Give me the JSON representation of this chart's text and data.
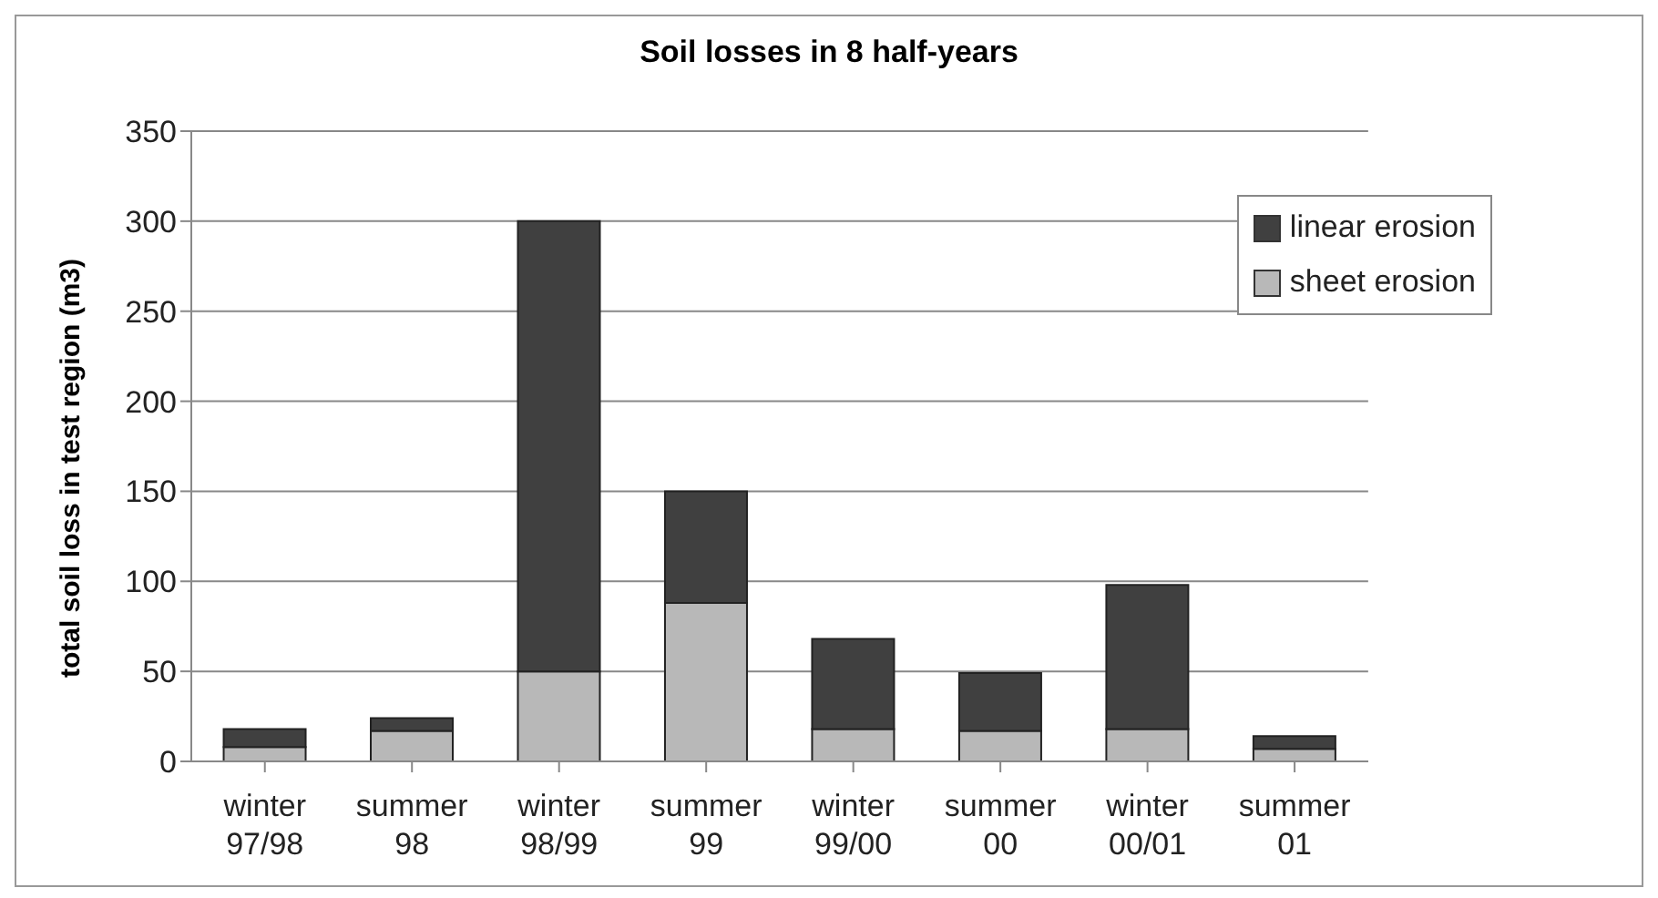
{
  "chart_data": {
    "type": "bar",
    "title": "Soil losses in 8 half-years",
    "ylabel": "total soil loss in test region (m3)",
    "categories": [
      "winter 97/98",
      "summer 98",
      "winter 98/99",
      "summer 99",
      "winter 99/00",
      "summer 00",
      "winter 00/01",
      "summer 01"
    ],
    "series": [
      {
        "name": "sheet erosion",
        "color": "#b8b8b8",
        "values": [
          8,
          17,
          50,
          88,
          18,
          17,
          18,
          7
        ]
      },
      {
        "name": "linear erosion",
        "color": "#404040",
        "values": [
          10,
          7,
          250,
          62,
          50,
          32,
          80,
          7
        ]
      }
    ],
    "stacked": true,
    "ylim": [
      0,
      350
    ],
    "yticks": [
      0,
      50,
      100,
      150,
      200,
      250,
      300,
      350
    ],
    "grid": "y",
    "legend": "top right"
  }
}
